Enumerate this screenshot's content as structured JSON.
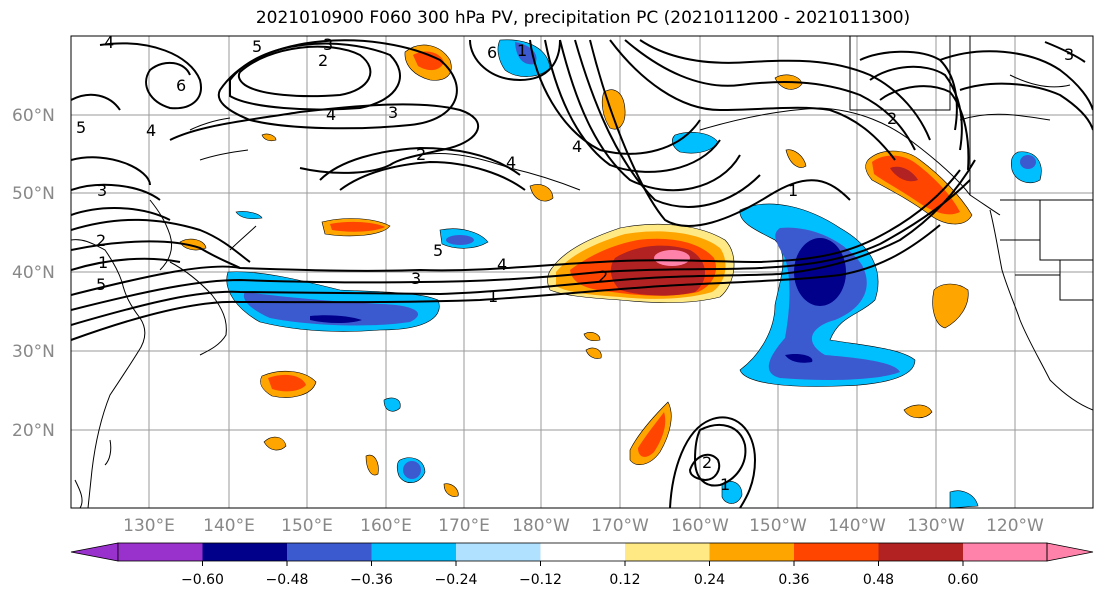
{
  "title": "2021010900 F060 300 hPa PV, precipitation PC (2021011200 - 2021011300)",
  "lat_labels": [
    "60°N",
    "50°N",
    "40°N",
    "30°N",
    "20°N"
  ],
  "lon_labels": [
    "130°E",
    "140°E",
    "150°E",
    "160°E",
    "170°E",
    "180°W",
    "170°W",
    "160°W",
    "150°W",
    "140°W",
    "130°W",
    "120°W"
  ],
  "pv_contour_labels": [
    "4",
    "5",
    "3",
    "2",
    "6",
    "4",
    "5",
    "3",
    "2",
    "1",
    "5",
    "4",
    "3",
    "2",
    "4",
    "1",
    "6",
    "4",
    "5",
    "3",
    "2",
    "1",
    "4",
    "3",
    "2",
    "1",
    "2",
    "1"
  ],
  "colorbar": {
    "tick_labels": [
      "−0.60",
      "−0.48",
      "−0.36",
      "−0.24",
      "−0.12",
      "0.12",
      "0.24",
      "0.36",
      "0.48",
      "0.60"
    ],
    "colors": [
      "#9932cc",
      "#00008b",
      "#3c5ad0",
      "#00bfff",
      "#b0e2ff",
      "#ffffff",
      "#ffe985",
      "#ffa500",
      "#ff4500",
      "#b22222",
      "#ff82ab"
    ]
  }
}
